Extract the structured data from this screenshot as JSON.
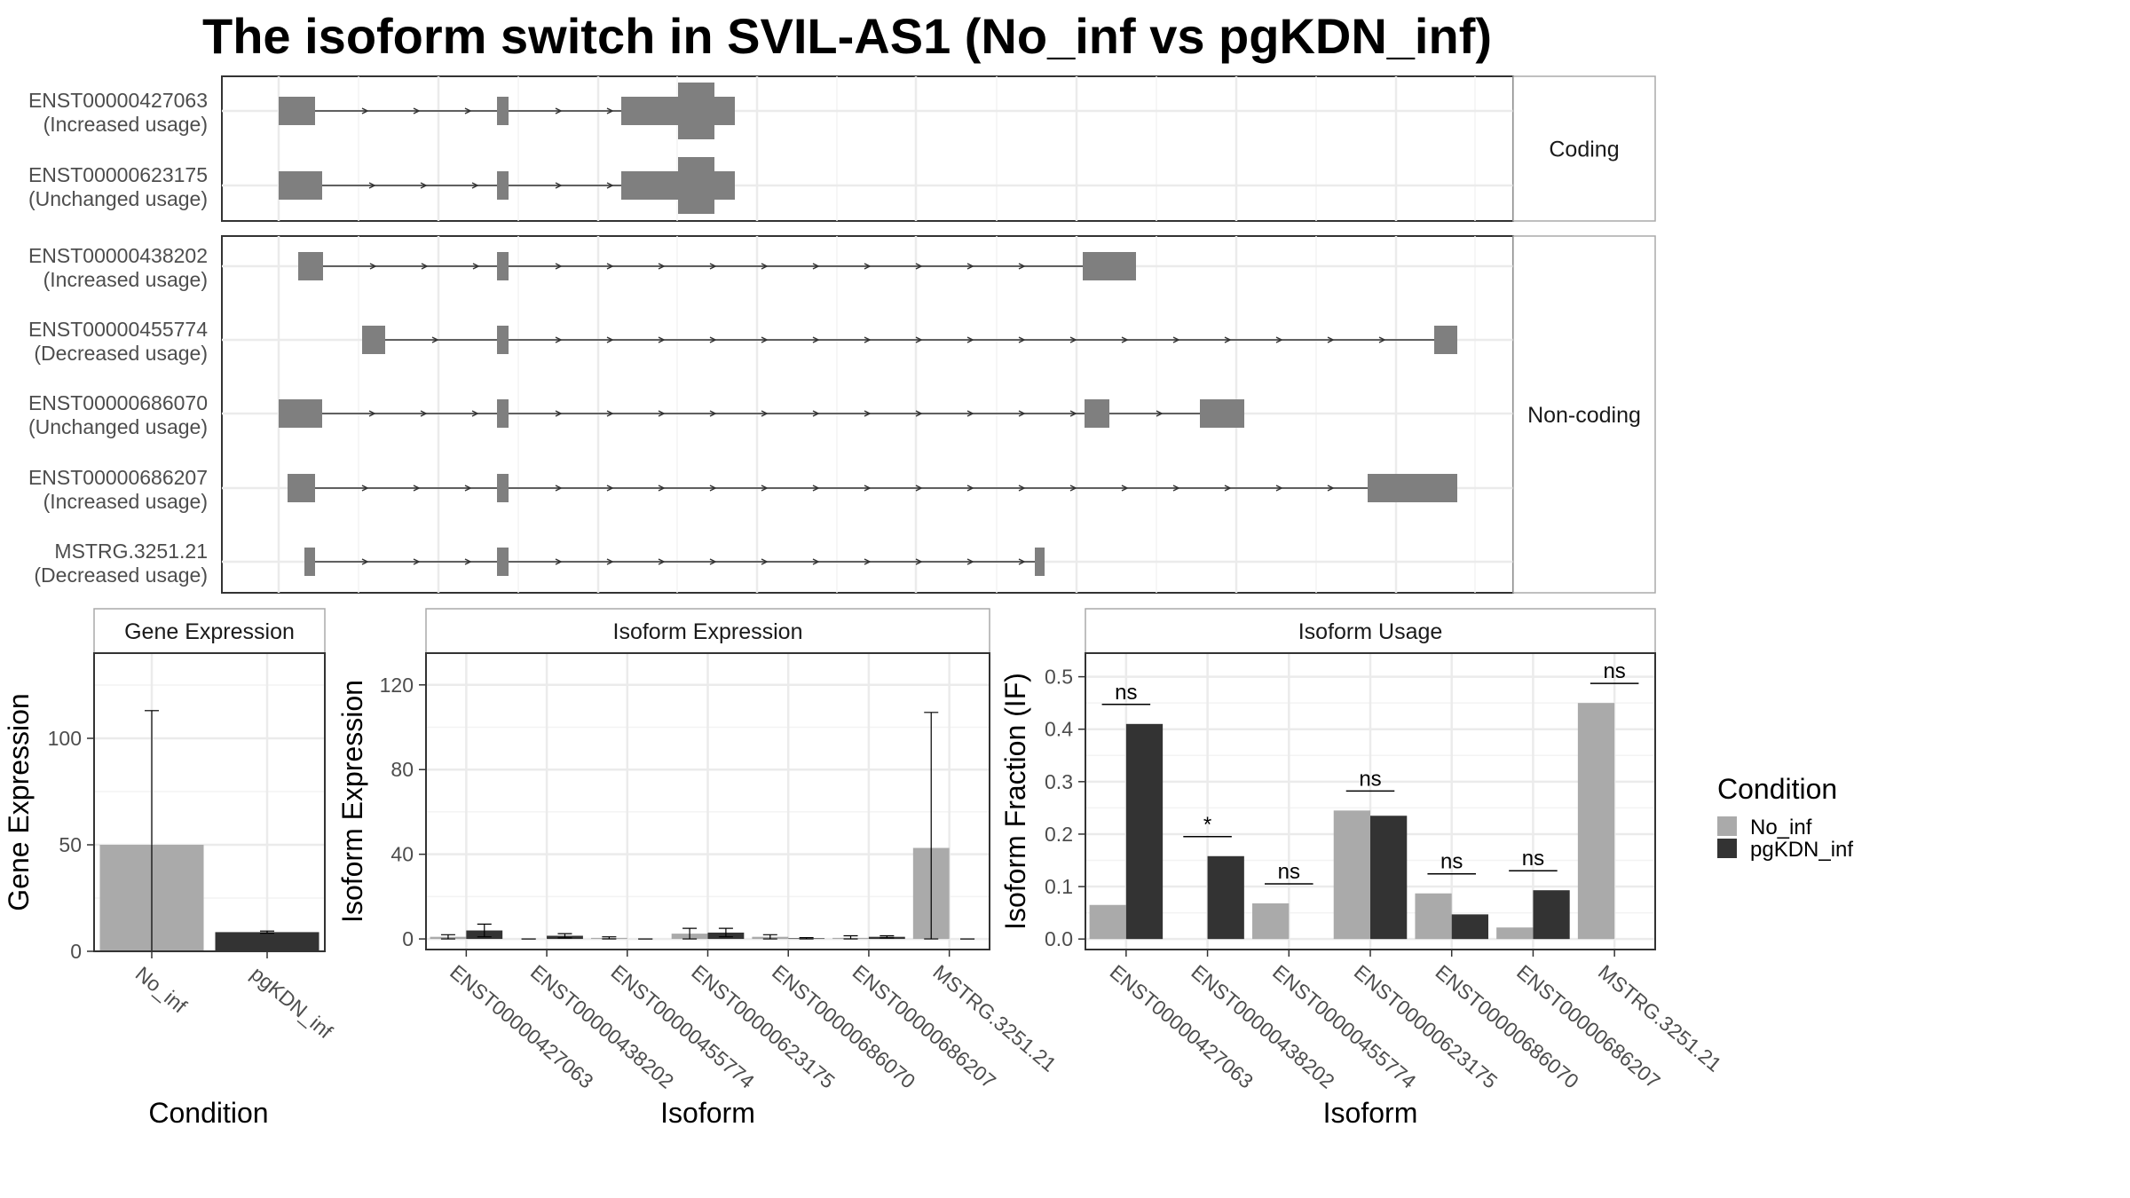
{
  "title": "The isoform switch in SVIL-AS1 (No_inf vs pgKDN_inf)",
  "colors": {
    "exon": "#7f7f7f",
    "No_inf": "#aaaaaa",
    "pgKDN_inf": "#333333",
    "grid": "#ebebeb",
    "strip_bg": "#ffffff",
    "panel_border": "#333333"
  },
  "transcripts": {
    "coding_label": "Coding",
    "noncoding_label": "Non-coding",
    "coding": [
      {
        "id": "ENST00000427063",
        "usage": "(Increased usage)"
      },
      {
        "id": "ENST00000623175",
        "usage": "(Unchanged usage)"
      }
    ],
    "noncoding": [
      {
        "id": "ENST00000438202",
        "usage": "(Increased usage)"
      },
      {
        "id": "ENST00000455774",
        "usage": "(Decreased usage)"
      },
      {
        "id": "ENST00000686070",
        "usage": "(Unchanged usage)"
      },
      {
        "id": "ENST00000686207",
        "usage": "(Increased usage)"
      },
      {
        "id": "MSTRG.3251.21",
        "usage": "(Decreased usage)"
      }
    ]
  },
  "chart_data": [
    {
      "type": "bar",
      "title": "Gene Expression",
      "xlabel": "Condition",
      "ylabel": "Gene Expression",
      "categories": [
        "No_inf",
        "pgKDN_inf"
      ],
      "values": [
        50,
        9
      ],
      "error_low": [
        0,
        8.5
      ],
      "error_high": [
        113,
        9.5
      ],
      "ylim": [
        0,
        140
      ],
      "yticks": [
        0,
        50,
        100
      ],
      "grid": true
    },
    {
      "type": "bar",
      "title": "Isoform Expression",
      "xlabel": "Isoform",
      "ylabel": "Isoform Expression",
      "categories": [
        "ENST00000427063",
        "ENST00000438202",
        "ENST00000455774",
        "ENST00000623175",
        "ENST00000686070",
        "ENST00000686207",
        "MSTRG.3251.21"
      ],
      "series": [
        {
          "name": "No_inf",
          "values": [
            1,
            0,
            0.5,
            2.5,
            1,
            0.5,
            43
          ],
          "error_low": [
            0,
            0,
            0,
            0,
            0,
            0,
            0
          ],
          "error_high": [
            2,
            0,
            1,
            5,
            2,
            1.5,
            107
          ]
        },
        {
          "name": "pgKDN_inf",
          "values": [
            4,
            1.5,
            0,
            3,
            0.3,
            1,
            0
          ],
          "error_low": [
            1,
            0.5,
            0,
            1,
            0,
            0.5,
            0
          ],
          "error_high": [
            7,
            2.5,
            0,
            5,
            0.6,
            1.5,
            0
          ]
        }
      ],
      "ylim": [
        -5,
        135
      ],
      "yticks": [
        0,
        40,
        80,
        120
      ],
      "grid": true
    },
    {
      "type": "bar",
      "title": "Isoform Usage",
      "xlabel": "Isoform",
      "ylabel": "Isoform Fraction (IF)",
      "categories": [
        "ENST00000427063",
        "ENST00000438202",
        "ENST00000455774",
        "ENST00000623175",
        "ENST00000686070",
        "ENST00000686207",
        "MSTRG.3251.21"
      ],
      "series": [
        {
          "name": "No_inf",
          "values": [
            0.065,
            0,
            0.068,
            0.245,
            0.087,
            0.022,
            0.45
          ]
        },
        {
          "name": "pgKDN_inf",
          "values": [
            0.41,
            0.158,
            0,
            0.235,
            0.047,
            0.093,
            0
          ]
        }
      ],
      "significance": [
        "ns",
        "*",
        "ns",
        "ns",
        "ns",
        "ns",
        "ns"
      ],
      "ylim": [
        -0.02,
        0.545
      ],
      "yticks": [
        0.0,
        0.1,
        0.2,
        0.3,
        0.4,
        0.5
      ],
      "grid": true
    }
  ],
  "legend": {
    "title": "Condition",
    "entries": [
      "No_inf",
      "pgKDN_inf"
    ]
  }
}
